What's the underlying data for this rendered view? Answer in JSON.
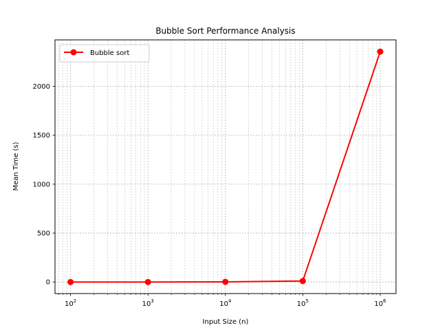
{
  "chart_data": {
    "type": "line",
    "title": "Bubble Sort Performance Analysis",
    "xlabel": "Input Size (n)",
    "ylabel": "Mean Time (s)",
    "xscale": "log",
    "xlim": [
      63,
      1600000
    ],
    "ylim": [
      -118,
      2475
    ],
    "x_ticks": [
      {
        "value": 100,
        "base": "10",
        "exp": "2"
      },
      {
        "value": 1000,
        "base": "10",
        "exp": "3"
      },
      {
        "value": 10000,
        "base": "10",
        "exp": "4"
      },
      {
        "value": 100000,
        "base": "10",
        "exp": "5"
      },
      {
        "value": 1000000,
        "base": "10",
        "exp": "6"
      }
    ],
    "y_ticks": [
      {
        "value": 0,
        "label": "0"
      },
      {
        "value": 500,
        "label": "500"
      },
      {
        "value": 1000,
        "label": "1000"
      },
      {
        "value": 1500,
        "label": "1500"
      },
      {
        "value": 2000,
        "label": "2000"
      }
    ],
    "grid": true,
    "legend_position": "top-left",
    "series": [
      {
        "name": "Bubble sort",
        "color": "#ff0000",
        "marker": "circle",
        "x": [
          100,
          1000,
          10000,
          100000,
          1000000
        ],
        "y": [
          0.001,
          0.1,
          1.5,
          10,
          2355
        ]
      }
    ]
  }
}
